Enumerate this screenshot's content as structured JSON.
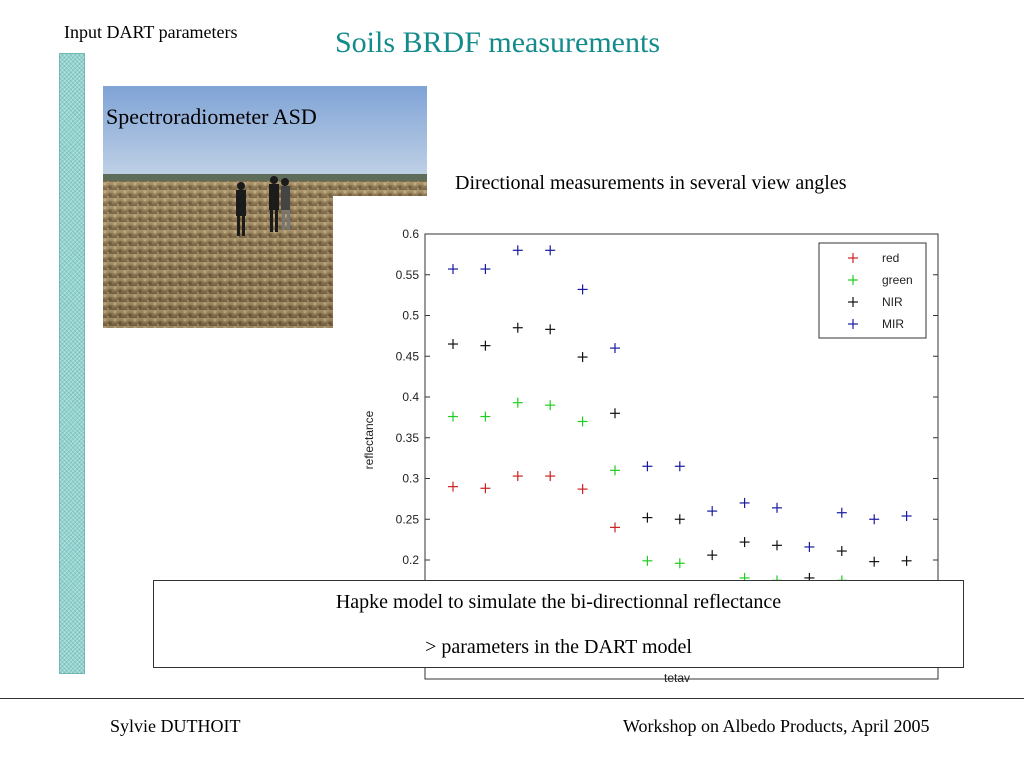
{
  "header": {
    "section_label": "Input DART parameters",
    "title": "Soils BRDF measurements"
  },
  "photo": {
    "caption": "Spectroradiometer ASD"
  },
  "directional_text": "Directional measurements in several view angles",
  "model_box": {
    "line1": "Hapke model to simulate the bi-directionnal reflectance",
    "line2": "> parameters in the DART model"
  },
  "footer": {
    "author": "Sylvie DUTHOIT",
    "event": "Workshop on Albedo Products, April 2005"
  },
  "colors": {
    "title": "#148b8b",
    "red": "#cc2222",
    "green": "#22cc22",
    "NIR": "#111111",
    "MIR": "#1a1aa0"
  },
  "chart_data": {
    "type": "scatter",
    "xlabel": "tetav",
    "ylabel": "reflectance",
    "ylim_visible": [
      0.18,
      0.6
    ],
    "y_ticks": [
      "0.2",
      "0.25",
      "0.3",
      "0.35",
      "0.4",
      "0.45",
      "0.5",
      "0.55",
      "0.6"
    ],
    "y_tick_values": [
      0.2,
      0.25,
      0.3,
      0.35,
      0.4,
      0.45,
      0.5,
      0.55,
      0.6
    ],
    "legend_position": "top-right",
    "point_index": [
      1,
      2,
      3,
      4,
      5,
      6,
      7,
      8,
      9,
      10,
      11,
      12,
      13,
      14,
      15
    ],
    "series": [
      {
        "name": "red",
        "color_key": "red",
        "values": [
          0.29,
          0.288,
          0.303,
          0.303,
          0.287,
          0.24,
          null,
          null,
          null,
          null,
          null,
          null,
          null,
          null,
          null
        ]
      },
      {
        "name": "green",
        "color_key": "green",
        "values": [
          0.376,
          0.376,
          0.393,
          0.39,
          0.37,
          0.31,
          0.199,
          0.196,
          null,
          0.178,
          0.175,
          null,
          0.175,
          null,
          null
        ]
      },
      {
        "name": "NIR",
        "color_key": "NIR",
        "values": [
          0.465,
          0.463,
          0.485,
          0.483,
          0.449,
          0.38,
          0.252,
          0.25,
          0.206,
          0.222,
          0.218,
          0.178,
          0.211,
          0.198,
          0.199
        ]
      },
      {
        "name": "MIR",
        "color_key": "MIR",
        "values": [
          0.557,
          0.557,
          0.58,
          0.58,
          0.532,
          0.46,
          0.315,
          0.315,
          0.26,
          0.27,
          0.264,
          0.216,
          0.258,
          0.25,
          0.254
        ]
      }
    ]
  }
}
